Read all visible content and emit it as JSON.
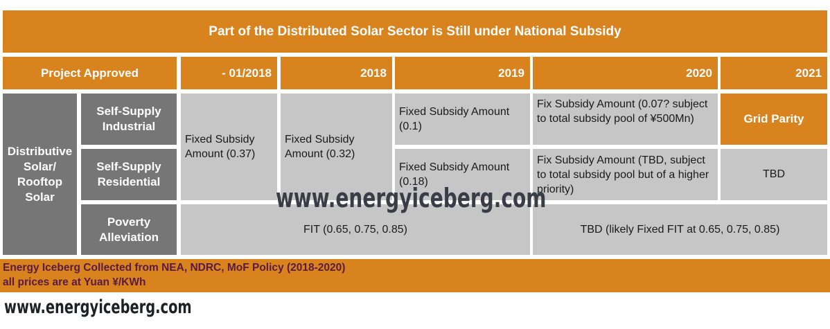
{
  "title": "Part of the Distributed Solar Sector is Still under National Subsidy",
  "headers": {
    "project_approved": "Project Approved",
    "col1": "- 01/2018",
    "col2": "2018",
    "col3": "2019",
    "col4": "2020",
    "col5": "2021"
  },
  "category": "Distributive Solar/ Rooftop Solar",
  "rows": {
    "industrial": {
      "label": "Self-Supply Industrial",
      "c2019": "Fixed Subsidy Amount (0.1)",
      "c2020": "Fix Subsidy Amount (0.07? subject to total subsidy pool of ¥500Mn)",
      "c2021": "Grid Parity"
    },
    "residential": {
      "label": "Self-Supply Residential",
      "c2019": "Fixed Subsidy Amount (0.18)",
      "c2020": "Fix Subsidy Amount  (TBD, subject to total subsidy pool but of a higher priority)",
      "c2021": "TBD"
    },
    "shared": {
      "c_pre2018": "Fixed Subsidy Amount (0.37)",
      "c2018": "Fixed Subsidy Amount (0.32)"
    },
    "poverty": {
      "label": "Poverty Alleviation",
      "left": "FIT (0.65, 0.75, 0.85)",
      "right": "TBD (likely Fixed FIT at 0.65, 0.75, 0.85)"
    }
  },
  "footer": {
    "line1": "Energy Iceberg Collected from NEA, NDRC, MoF Policy (2018-2020)",
    "line2": "all prices are at Yuan ¥/KWh"
  },
  "watermark": "www.energyiceberg.com"
}
